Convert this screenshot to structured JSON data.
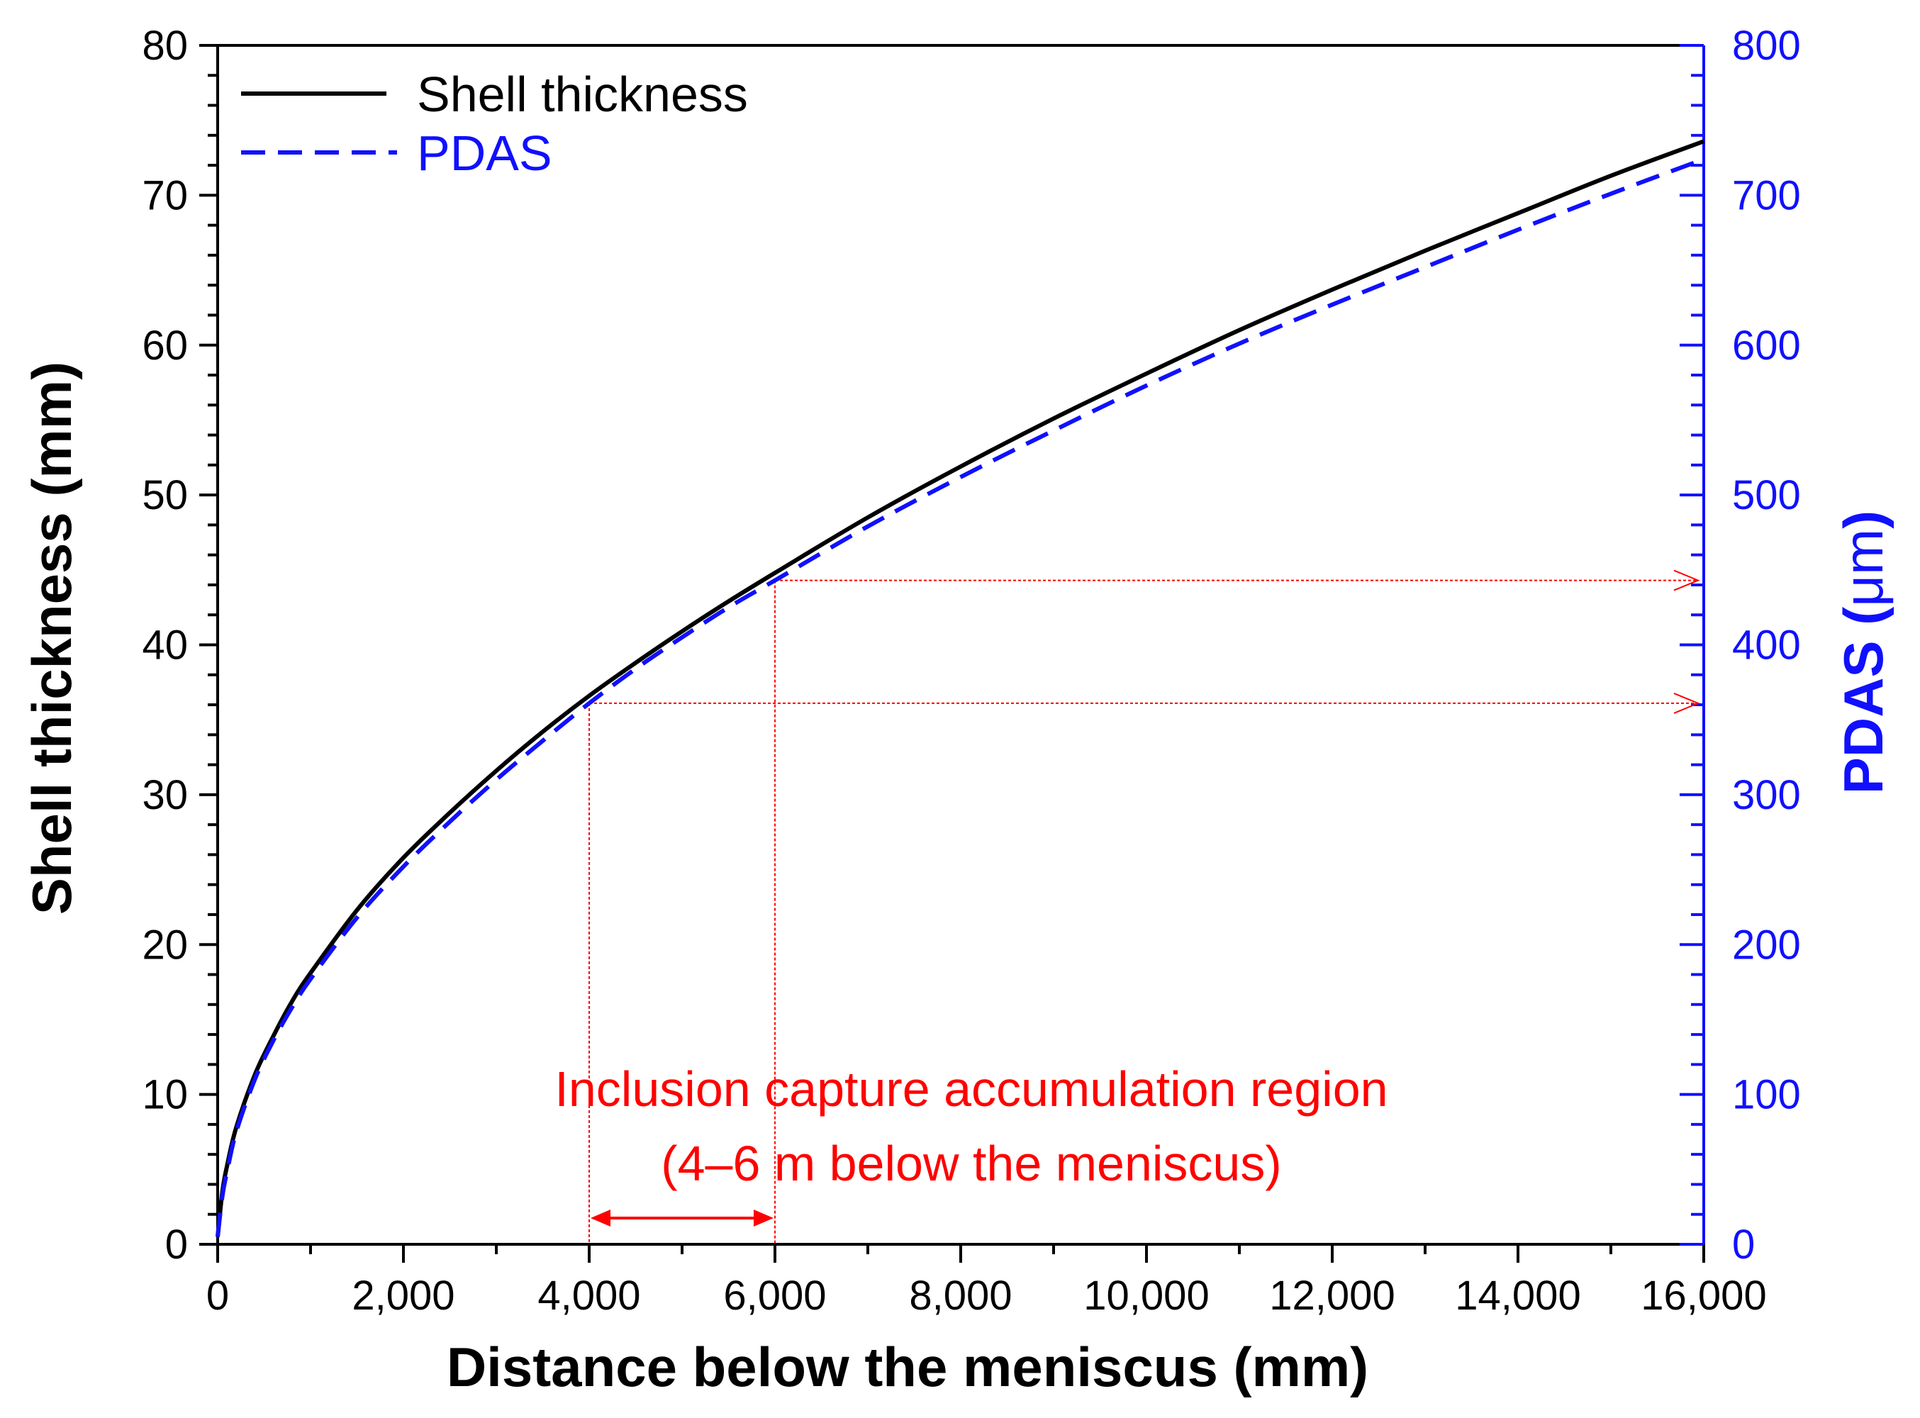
{
  "chart_data": {
    "type": "line",
    "title": "",
    "xlabel": "Distance below the meniscus (mm)",
    "ylabel_left": "Shell thickness (mm)",
    "ylabel_right_main": "PDAS (",
    "ylabel_right_unit": "μm",
    "ylabel_right_close": ")",
    "xlim": [
      0,
      16000
    ],
    "ylim_left": [
      0,
      80
    ],
    "ylim_right": [
      0,
      800
    ],
    "x_ticks": [
      0,
      2000,
      4000,
      6000,
      8000,
      10000,
      12000,
      14000,
      16000
    ],
    "x_tick_labels": [
      "0",
      "2,000",
      "4,000",
      "6,000",
      "8,000",
      "10,000",
      "12,000",
      "14,000",
      "16,000"
    ],
    "y_left_ticks": [
      0,
      10,
      20,
      30,
      40,
      50,
      60,
      70,
      80
    ],
    "y_left_tick_labels": [
      "0",
      "10",
      "20",
      "30",
      "40",
      "50",
      "60",
      "70",
      "80"
    ],
    "y_right_ticks": [
      0,
      100,
      200,
      300,
      400,
      500,
      600,
      700,
      800
    ],
    "y_right_tick_labels": [
      "0",
      "100",
      "200",
      "300",
      "400",
      "500",
      "600",
      "700",
      "800"
    ],
    "grid": false,
    "legend_position": "top-left",
    "series": [
      {
        "name": "Shell thickness",
        "axis": "left",
        "color": "#000000",
        "style": "solid",
        "x": [
          0,
          50,
          100,
          200,
          400,
          600,
          800,
          1000,
          1500,
          2000,
          2500,
          3000,
          3500,
          4000,
          4500,
          5000,
          5500,
          6000,
          7000,
          8000,
          9000,
          10000,
          11000,
          12000,
          13000,
          14000,
          15000,
          16000
        ],
        "y": [
          0.5,
          3.5,
          5.2,
          7.8,
          11.3,
          13.9,
          16.2,
          18.1,
          22.3,
          25.8,
          28.8,
          31.6,
          34.2,
          36.6,
          38.8,
          40.9,
          42.9,
          44.8,
          48.5,
          51.9,
          55.1,
          58.1,
          61.0,
          63.7,
          66.3,
          68.8,
          71.3,
          73.6
        ]
      },
      {
        "name": "PDAS",
        "axis": "right",
        "color": "#1010ff",
        "style": "dashed",
        "x": [
          0,
          50,
          100,
          200,
          400,
          600,
          800,
          1000,
          1500,
          2000,
          2500,
          3000,
          3500,
          4000,
          4500,
          5000,
          5500,
          6000,
          7000,
          8000,
          9000,
          10000,
          11000,
          12000,
          13000,
          14000,
          15000,
          16000
        ],
        "y": [
          5,
          32,
          48,
          75,
          110,
          136,
          158,
          177,
          218,
          252,
          282,
          310,
          336,
          361,
          384,
          405,
          425,
          443,
          479,
          512,
          543,
          573,
          601,
          627,
          652,
          677,
          701,
          724
        ]
      }
    ],
    "annotations": {
      "region_text_line1": "Inclusion capture accumulation region",
      "region_text_line2": "(4–6 m below the meniscus)",
      "region_x_start": 4000,
      "region_x_end": 6000,
      "pdas_at_start": 361,
      "pdas_at_end": 443,
      "color": "#ff0000"
    }
  }
}
